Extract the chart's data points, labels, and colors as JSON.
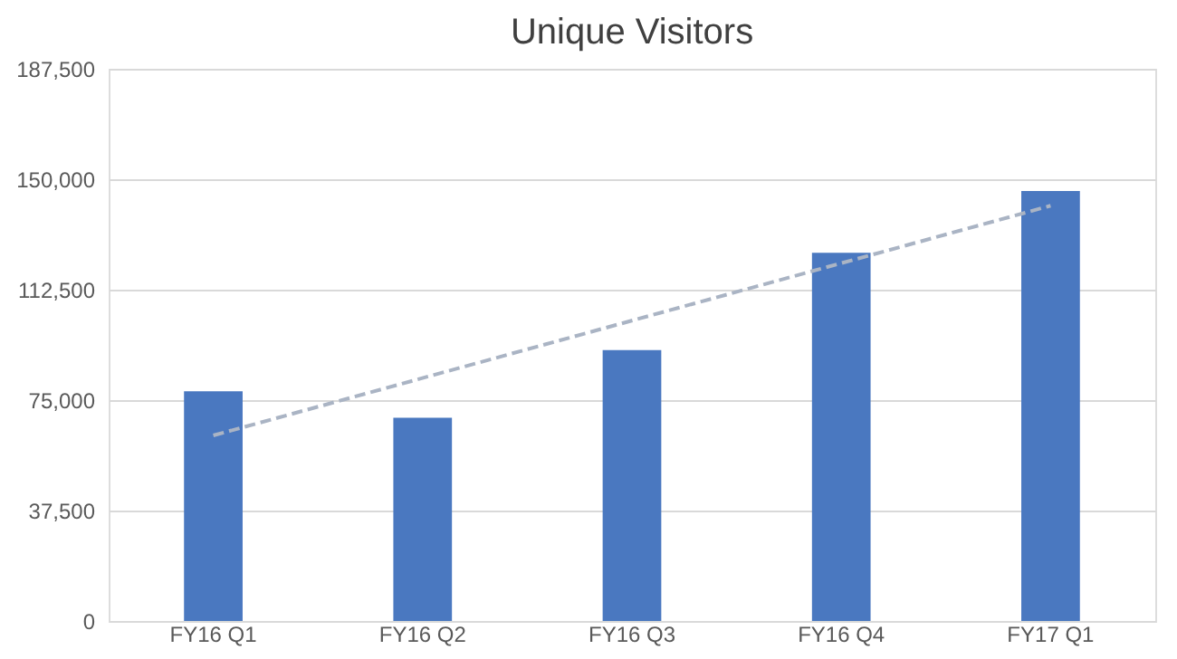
{
  "chart_data": {
    "type": "bar",
    "title": "Unique Visitors",
    "categories": [
      "FY16 Q1",
      "FY16 Q2",
      "FY16 Q3",
      "FY16 Q4",
      "FY17 Q1"
    ],
    "series": [
      {
        "color": "#4a78c0",
        "values": [
          78000,
          69000,
          92000,
          125000,
          146000
        ]
      },
      {
        "type": "line",
        "color": "#aab4c4",
        "line_style": "dashed",
        "x": [
          "FY16 Q1",
          "FY17 Q1"
        ],
        "values": [
          63000,
          141000
        ]
      }
    ],
    "ylim": [
      0,
      187500
    ],
    "yticks": [
      0,
      {
        "value": 37500,
        "label": "37,500"
      },
      {
        "value": 75000,
        "label": "75,000"
      },
      {
        "value": 112500,
        "label": "112,500"
      },
      {
        "value": 150000,
        "label": "150,000"
      },
      {
        "value": 187500,
        "label": "187,500"
      }
    ],
    "grid": "y"
  }
}
